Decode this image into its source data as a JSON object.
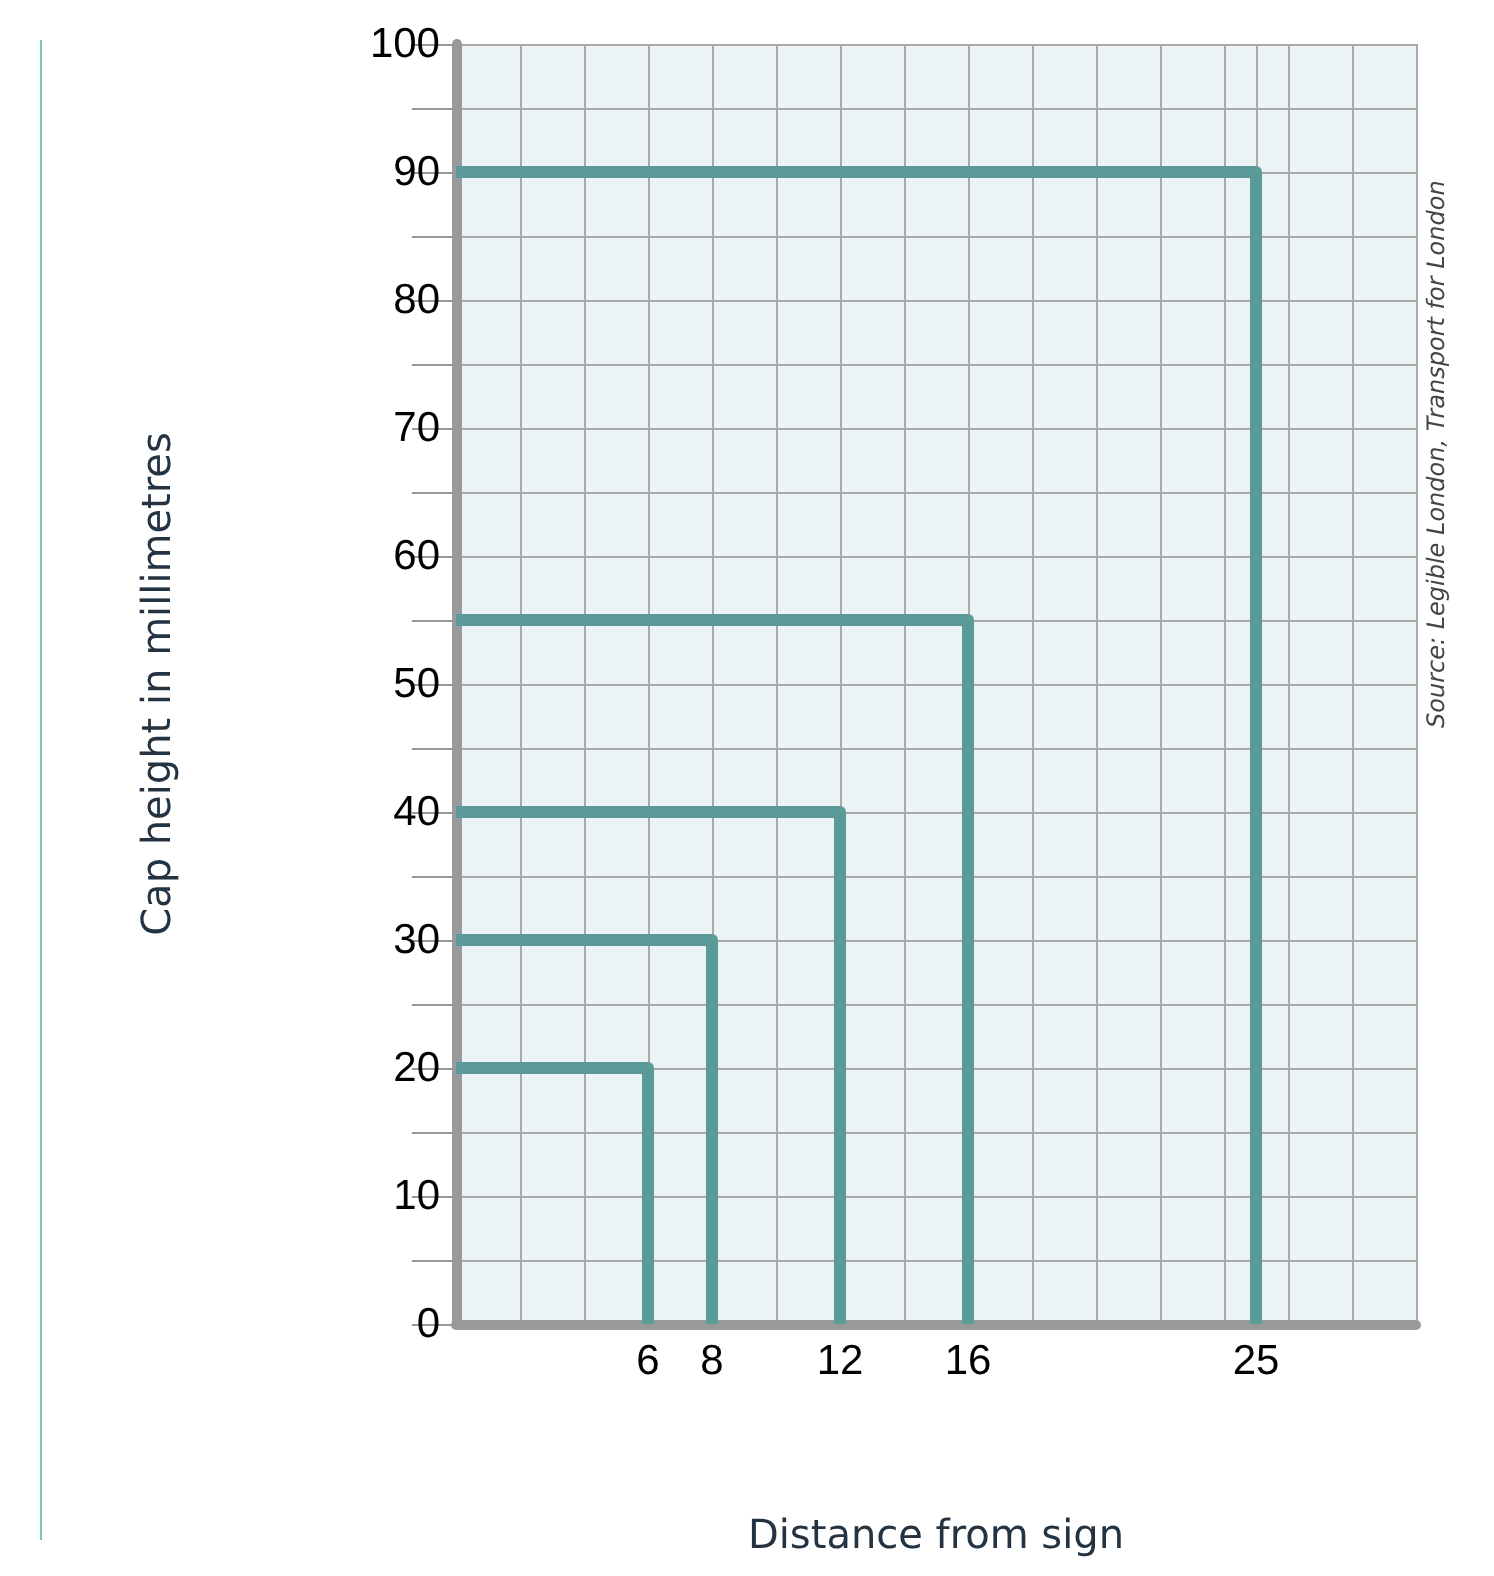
{
  "chart_data": {
    "type": "line",
    "xlabel": "Distance from sign",
    "ylabel": "Cap height in millimetres",
    "annotations": [
      "Source: Legible London, Transport for London"
    ],
    "series": [
      {
        "color": "#5a9a98",
        "x": [
          0,
          6,
          6
        ],
        "values": [
          20,
          20,
          0
        ]
      },
      {
        "color": "#5a9a98",
        "x": [
          0,
          8,
          8
        ],
        "values": [
          30,
          30,
          0
        ]
      },
      {
        "color": "#5a9a98",
        "x": [
          0,
          12,
          12
        ],
        "values": [
          40,
          40,
          0
        ]
      },
      {
        "color": "#5a9a98",
        "x": [
          0,
          16,
          16
        ],
        "values": [
          55,
          55,
          0
        ]
      },
      {
        "color": "#5a9a98",
        "x": [
          0,
          25,
          25
        ],
        "values": [
          90,
          90,
          0
        ]
      }
    ],
    "xlim": [
      0,
      30
    ],
    "xticks": [
      {
        "value": 0,
        "label": null
      },
      {
        "value": 2,
        "label": null
      },
      {
        "value": 4,
        "label": null
      },
      6,
      8,
      {
        "value": 10,
        "label": null
      },
      12,
      {
        "value": 14,
        "label": null
      },
      16,
      {
        "value": 18,
        "label": null
      },
      {
        "value": 20,
        "label": null
      },
      {
        "value": 22,
        "label": null
      },
      {
        "value": 24,
        "label": null
      },
      25,
      {
        "value": 26,
        "label": null
      },
      {
        "value": 28,
        "label": null
      },
      {
        "value": 30,
        "label": null
      }
    ],
    "ylim": [
      0,
      100
    ],
    "yticks": [
      0,
      {
        "value": 5,
        "label": null
      },
      10,
      {
        "value": 15,
        "label": null
      },
      20,
      {
        "value": 25,
        "label": null
      },
      30,
      {
        "value": 35,
        "label": null
      },
      40,
      {
        "value": 45,
        "label": null
      },
      50,
      {
        "value": 55,
        "label": null
      },
      60,
      {
        "value": 65,
        "label": null
      },
      70,
      {
        "value": 75,
        "label": null
      },
      80,
      {
        "value": 85,
        "label": null
      },
      90,
      {
        "value": 95,
        "label": null
      },
      100
    ],
    "grid": true,
    "marker": "none",
    "line_style": "solid"
  }
}
